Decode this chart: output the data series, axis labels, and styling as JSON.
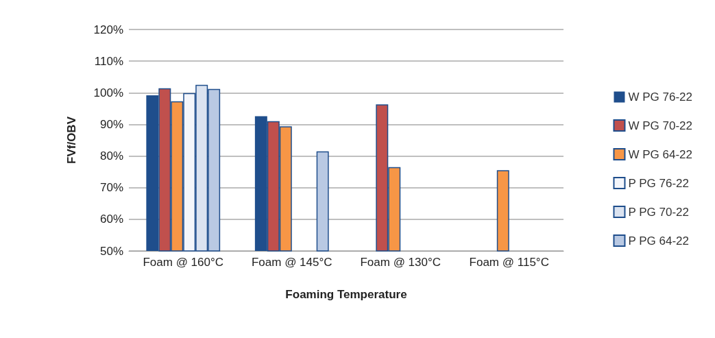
{
  "chart_data": {
    "type": "bar",
    "xlabel": "Foaming Temperature",
    "ylabel": "FVf/OBV",
    "categories": [
      "Foam @ 160°C",
      "Foam @ 145°C",
      "Foam @ 130°C",
      "Foam @ 115°C"
    ],
    "series": [
      {
        "name": "W PG 76-22",
        "color": "#1f4e8c",
        "values": [
          99.2,
          92.6,
          50,
          50
        ]
      },
      {
        "name": "W PG 70-22",
        "color": "#c0504d",
        "values": [
          101.4,
          91.0,
          96.3,
          50
        ]
      },
      {
        "name": "W PG 64-22",
        "color": "#f79646",
        "values": [
          97.3,
          89.4,
          76.5,
          75.5
        ]
      },
      {
        "name": "P PG 76-22",
        "color": "#f4f6fb",
        "values": [
          99.9,
          50,
          50,
          50
        ]
      },
      {
        "name": "P PG 70-22",
        "color": "#dbe3f0",
        "values": [
          102.5,
          50,
          50,
          50
        ]
      },
      {
        "name": "P PG 64-22",
        "color": "#b9c9e3",
        "values": [
          101.2,
          81.5,
          50,
          50
        ]
      }
    ],
    "ylim": [
      50,
      120
    ],
    "yticks": [
      {
        "value": 50,
        "label": "50%"
      },
      {
        "value": 60,
        "label": "60%"
      },
      {
        "value": 70,
        "label": "70%"
      },
      {
        "value": 80,
        "label": "80%"
      },
      {
        "value": 90,
        "label": "90%"
      },
      {
        "value": 100,
        "label": "100%"
      },
      {
        "value": 110,
        "label": "110%"
      },
      {
        "value": 120,
        "label": "120%"
      }
    ],
    "grid": "y",
    "legend": "right"
  }
}
